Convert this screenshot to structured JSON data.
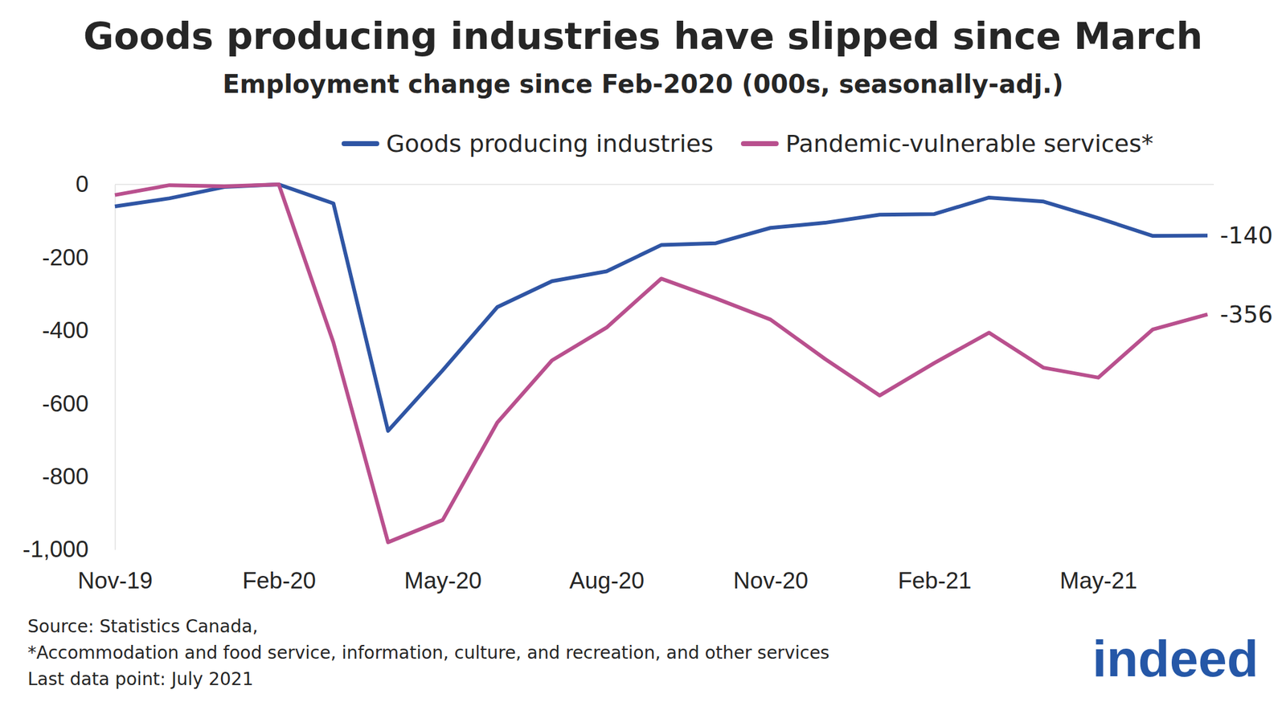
{
  "chart_data": {
    "type": "line",
    "title": "Goods producing industries have slipped since March",
    "subtitle": "Employment change since Feb-2020 (000s, seasonally-adj.)",
    "categories": [
      "Nov-19",
      null,
      null,
      "Feb-20",
      null,
      null,
      "May-20",
      null,
      null,
      "Aug-20",
      null,
      null,
      "Nov-20",
      null,
      null,
      "Feb-21",
      null,
      null,
      "May-21",
      null,
      null
    ],
    "series": [
      {
        "name": "Goods producing industries",
        "color": "#2f55a4",
        "values": [
          -60,
          -38,
          -7,
          0,
          -52,
          -675,
          -509,
          -336,
          -265,
          -238,
          -166,
          -161,
          -119,
          -105,
          -83,
          -81,
          -36,
          -47,
          -92,
          -141,
          -140
        ],
        "value_labels": [
          null,
          null,
          null,
          null,
          null,
          null,
          null,
          null,
          null,
          null,
          null,
          null,
          null,
          null,
          null,
          null,
          null,
          null,
          null,
          null,
          "-140"
        ]
      },
      {
        "name": "Pandemic-vulnerable services*",
        "color": "#b9508e",
        "values": [
          -29,
          -2,
          -5,
          0,
          -433,
          -980,
          -919,
          -652,
          -482,
          -392,
          -258,
          -312,
          -370,
          -478,
          -578,
          -489,
          -406,
          -502,
          -529,
          -397,
          -356
        ],
        "value_labels": [
          null,
          null,
          null,
          null,
          null,
          null,
          null,
          null,
          null,
          null,
          null,
          null,
          null,
          null,
          null,
          null,
          null,
          null,
          null,
          null,
          "-356"
        ]
      }
    ],
    "ylim": [
      -1000,
      0
    ],
    "yticks": [
      0,
      -200,
      -400,
      -600,
      -800,
      {
        "value": -1000,
        "label": "-1,000"
      }
    ],
    "grid": false,
    "legend": "top",
    "notes": [
      "Source: Statistics Canada,",
      "*Accommodation and food service, information, culture, and recreation, and other services",
      "Last data point: July 2021"
    ],
    "logo": "indeed"
  }
}
